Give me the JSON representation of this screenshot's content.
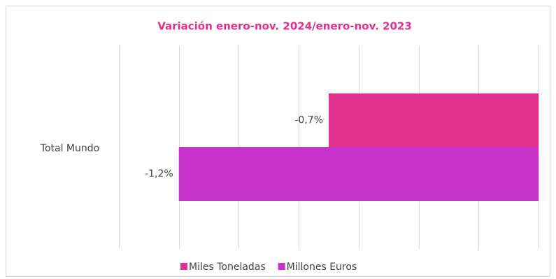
{
  "chart_data": {
    "type": "barh",
    "title": "Variación enero-nov. 2024/enero-nov. 2023",
    "categories": [
      "Total Mundo"
    ],
    "series": [
      {
        "name": "Miles Toneladas",
        "color": "#e1308e",
        "values": [
          -0.7
        ],
        "value_labels": [
          "-0,7%"
        ]
      },
      {
        "name": "Millones Euros",
        "color": "#c733cc",
        "values": [
          -1.2
        ],
        "value_labels": [
          "-1,2%"
        ]
      }
    ],
    "xlim": [
      -1.4,
      0
    ],
    "xticks": [
      -1.4,
      -1.2,
      -1,
      -0.8,
      -0.6,
      -0.4,
      -0.2,
      0
    ],
    "grid": true,
    "legend": "bottom"
  }
}
